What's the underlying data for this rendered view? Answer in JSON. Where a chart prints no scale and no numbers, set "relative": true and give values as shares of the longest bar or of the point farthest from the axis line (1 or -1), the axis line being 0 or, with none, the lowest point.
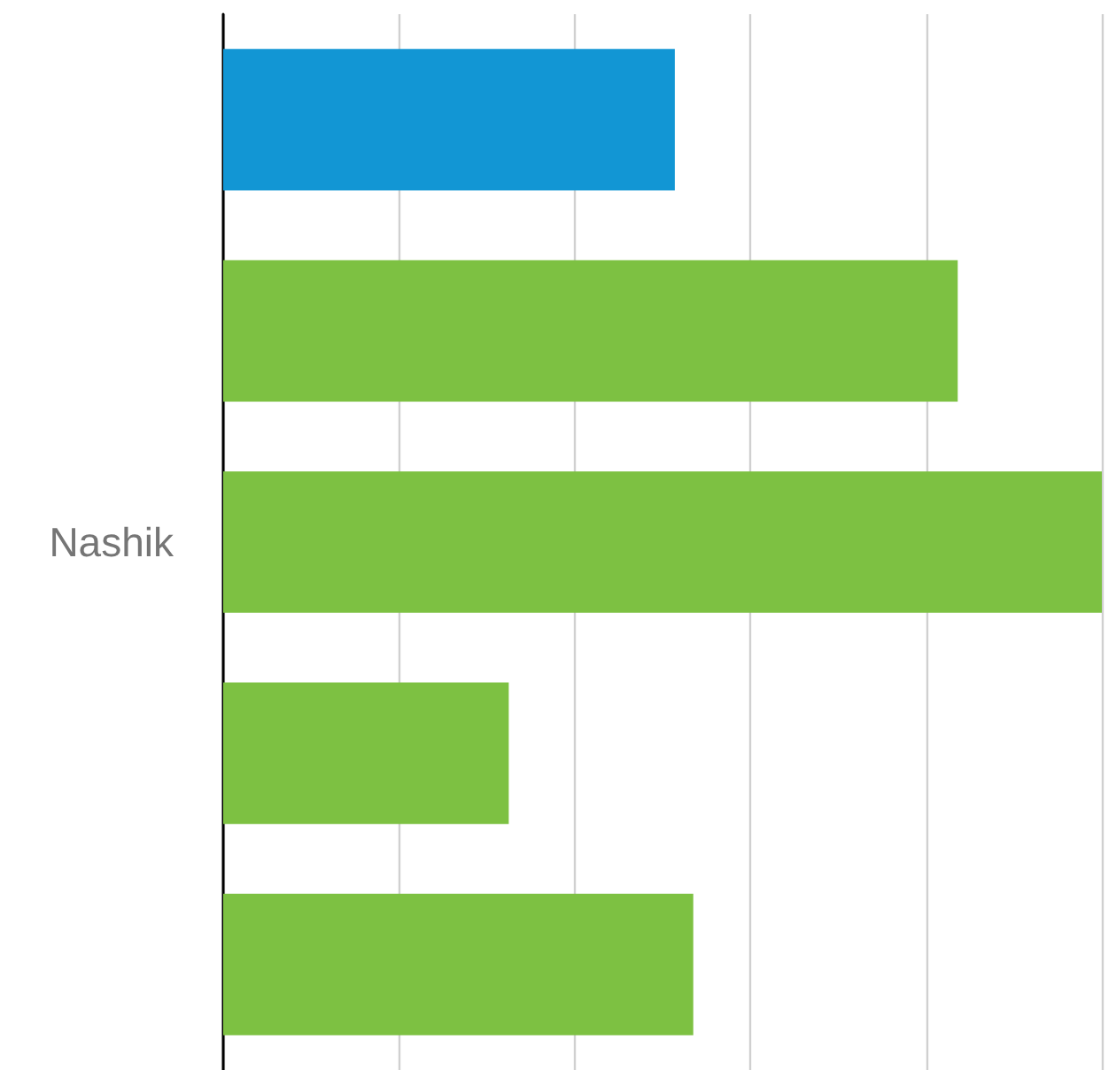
{
  "chart_data": {
    "type": "bar",
    "orientation": "horizontal",
    "relative": true,
    "grid": "x",
    "categories": [
      null,
      null,
      "Nashik",
      null,
      null
    ],
    "values": [
      0.514,
      0.836,
      1,
      0.325,
      0.535
    ],
    "colors": [
      "#1296d4",
      "#7dc142",
      "#7dc142",
      "#7dc142",
      "#7dc142"
    ]
  }
}
